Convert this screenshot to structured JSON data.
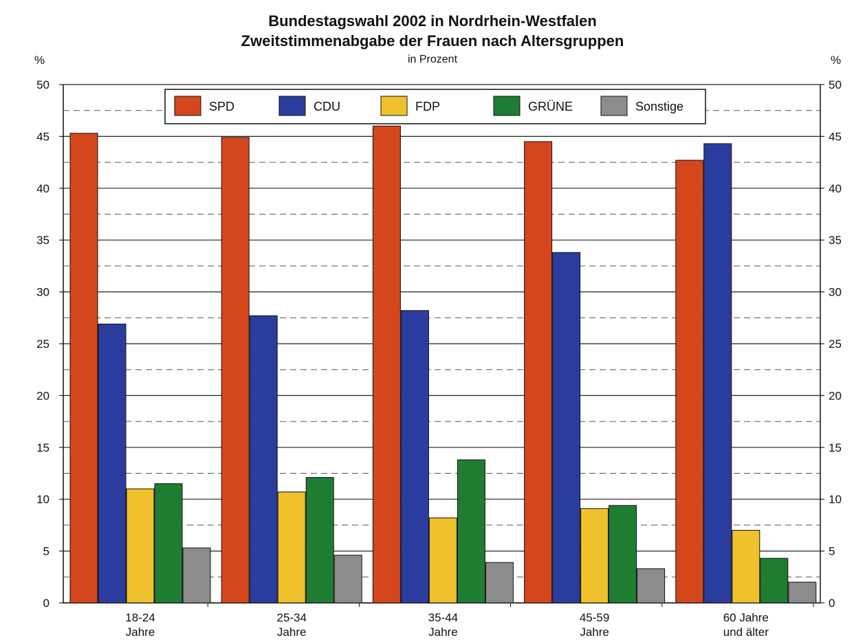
{
  "header": {
    "title": "Bundestagswahl 2002 in Nordrhein-Westfalen",
    "subtitle": "Zweitstimmenabgabe der Frauen nach Altersgruppen",
    "unit_note": "in Prozent",
    "left_axis_unit": "%",
    "right_axis_unit": "%"
  },
  "chart_data": {
    "type": "bar",
    "title": "Bundestagswahl 2002 in Nordrhein-Westfalen",
    "subtitle": "Zweitstimmenabgabe der Frauen nach Altersgruppen",
    "unit_note": "in Prozent",
    "ylabel": "%",
    "xlabel": "",
    "ylim": [
      0,
      50
    ],
    "yticks": [
      0,
      5,
      10,
      15,
      20,
      25,
      30,
      35,
      40,
      45,
      50
    ],
    "grid": "horizontal solid major, dashed minor",
    "legend_position": "top",
    "categories": [
      [
        "18-24",
        "Jahre"
      ],
      [
        "25-34",
        "Jahre"
      ],
      [
        "35-44",
        "Jahre"
      ],
      [
        "45-59",
        "Jahre"
      ],
      [
        "60 Jahre",
        "und älter"
      ]
    ],
    "series": [
      {
        "name": "SPD",
        "color": "#d4461c",
        "values": [
          45.3,
          44.9,
          46.0,
          44.5,
          42.7
        ]
      },
      {
        "name": "CDU",
        "color": "#2a3d9f",
        "values": [
          26.9,
          27.7,
          28.2,
          33.8,
          44.3
        ]
      },
      {
        "name": "FDP",
        "color": "#efc12c",
        "values": [
          11.0,
          10.7,
          8.2,
          9.1,
          7.0
        ]
      },
      {
        "name": "GRÜNE",
        "color": "#1f7d32",
        "values": [
          11.5,
          12.1,
          13.8,
          9.4,
          4.3
        ]
      },
      {
        "name": "Sonstige",
        "color": "#8c8c8c",
        "values": [
          5.3,
          4.6,
          3.9,
          3.3,
          2.0
        ]
      }
    ]
  }
}
